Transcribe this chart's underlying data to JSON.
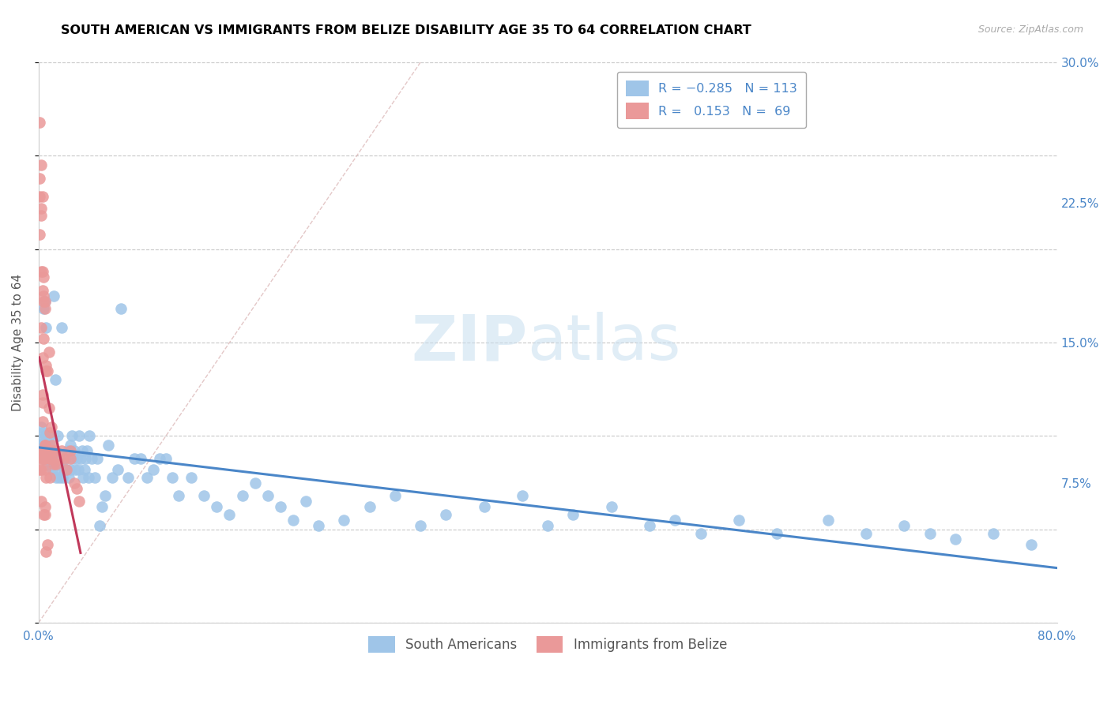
{
  "title": "SOUTH AMERICAN VS IMMIGRANTS FROM BELIZE DISABILITY AGE 35 TO 64 CORRELATION CHART",
  "source_text": "Source: ZipAtlas.com",
  "ylabel": "Disability Age 35 to 64",
  "x_min": 0.0,
  "x_max": 0.8,
  "y_min": 0.0,
  "y_max": 0.3,
  "x_ticks": [
    0.0,
    0.1,
    0.2,
    0.3,
    0.4,
    0.5,
    0.6,
    0.7,
    0.8
  ],
  "x_tick_labels": [
    "0.0%",
    "",
    "",
    "",
    "",
    "",
    "",
    "",
    "80.0%"
  ],
  "y_ticks": [
    0.0,
    0.075,
    0.15,
    0.225,
    0.3
  ],
  "y_tick_labels": [
    "",
    "7.5%",
    "15.0%",
    "22.5%",
    "30.0%"
  ],
  "legend_bottom": [
    "South Americans",
    "Immigrants from Belize"
  ],
  "blue_line_color": "#4a86c8",
  "pink_line_color": "#c0385a",
  "blue_dot_color": "#9fc5e8",
  "pink_dot_color": "#ea9999",
  "background_color": "#ffffff",
  "title_color": "#000000",
  "tick_color": "#4a86c8",
  "grid_color": "#c8c8c8",
  "title_fontsize": 11.5,
  "axis_label_fontsize": 11,
  "tick_fontsize": 11,
  "blue_scatter_x": [
    0.001,
    0.002,
    0.002,
    0.003,
    0.003,
    0.003,
    0.004,
    0.004,
    0.005,
    0.005,
    0.006,
    0.006,
    0.007,
    0.007,
    0.008,
    0.008,
    0.009,
    0.009,
    0.01,
    0.01,
    0.011,
    0.011,
    0.012,
    0.013,
    0.013,
    0.014,
    0.015,
    0.015,
    0.016,
    0.017,
    0.018,
    0.019,
    0.02,
    0.021,
    0.022,
    0.023,
    0.024,
    0.025,
    0.026,
    0.027,
    0.028,
    0.029,
    0.03,
    0.031,
    0.032,
    0.033,
    0.034,
    0.035,
    0.036,
    0.037,
    0.038,
    0.039,
    0.04,
    0.042,
    0.044,
    0.046,
    0.048,
    0.05,
    0.052,
    0.055,
    0.058,
    0.062,
    0.065,
    0.07,
    0.075,
    0.08,
    0.085,
    0.09,
    0.095,
    0.1,
    0.105,
    0.11,
    0.12,
    0.13,
    0.14,
    0.15,
    0.16,
    0.17,
    0.18,
    0.19,
    0.2,
    0.21,
    0.22,
    0.24,
    0.26,
    0.28,
    0.3,
    0.32,
    0.35,
    0.38,
    0.4,
    0.42,
    0.45,
    0.48,
    0.5,
    0.52,
    0.55,
    0.58,
    0.62,
    0.65,
    0.68,
    0.7,
    0.72,
    0.75,
    0.78,
    0.004,
    0.005,
    0.006,
    0.007,
    0.009,
    0.012,
    0.018,
    0.025
  ],
  "blue_scatter_y": [
    0.092,
    0.098,
    0.105,
    0.09,
    0.096,
    0.102,
    0.088,
    0.095,
    0.1,
    0.094,
    0.1,
    0.096,
    0.092,
    0.085,
    0.09,
    0.094,
    0.1,
    0.088,
    0.085,
    0.095,
    0.082,
    0.09,
    0.085,
    0.082,
    0.13,
    0.078,
    0.085,
    0.1,
    0.078,
    0.09,
    0.085,
    0.078,
    0.082,
    0.088,
    0.082,
    0.092,
    0.078,
    0.082,
    0.1,
    0.088,
    0.092,
    0.082,
    0.088,
    0.082,
    0.1,
    0.088,
    0.092,
    0.078,
    0.082,
    0.088,
    0.092,
    0.078,
    0.1,
    0.088,
    0.078,
    0.088,
    0.052,
    0.062,
    0.068,
    0.095,
    0.078,
    0.082,
    0.168,
    0.078,
    0.088,
    0.088,
    0.078,
    0.082,
    0.088,
    0.088,
    0.078,
    0.068,
    0.078,
    0.068,
    0.062,
    0.058,
    0.068,
    0.075,
    0.068,
    0.062,
    0.055,
    0.065,
    0.052,
    0.055,
    0.062,
    0.068,
    0.052,
    0.058,
    0.062,
    0.068,
    0.052,
    0.058,
    0.062,
    0.052,
    0.055,
    0.048,
    0.055,
    0.048,
    0.055,
    0.048,
    0.052,
    0.048,
    0.045,
    0.048,
    0.042,
    0.168,
    0.172,
    0.158,
    0.098,
    0.088,
    0.175,
    0.158,
    0.095
  ],
  "pink_scatter_x": [
    0.001,
    0.001,
    0.001,
    0.001,
    0.002,
    0.002,
    0.002,
    0.002,
    0.003,
    0.003,
    0.003,
    0.004,
    0.004,
    0.004,
    0.005,
    0.005,
    0.006,
    0.006,
    0.007,
    0.008,
    0.008,
    0.009,
    0.01,
    0.011,
    0.012,
    0.013,
    0.014,
    0.016,
    0.018,
    0.02,
    0.022,
    0.025,
    0.028,
    0.032,
    0.002,
    0.003,
    0.004,
    0.005,
    0.006,
    0.007,
    0.008,
    0.009,
    0.01,
    0.011,
    0.003,
    0.004,
    0.002,
    0.003,
    0.004,
    0.005,
    0.006,
    0.001,
    0.002,
    0.003,
    0.004,
    0.005,
    0.006,
    0.003,
    0.004,
    0.005,
    0.006,
    0.007,
    0.025,
    0.03,
    0.008,
    0.003,
    0.004,
    0.002,
    0.005
  ],
  "pink_scatter_y": [
    0.268,
    0.238,
    0.228,
    0.208,
    0.245,
    0.222,
    0.218,
    0.188,
    0.228,
    0.188,
    0.178,
    0.185,
    0.172,
    0.175,
    0.172,
    0.168,
    0.135,
    0.138,
    0.135,
    0.115,
    0.092,
    0.102,
    0.105,
    0.095,
    0.085,
    0.092,
    0.085,
    0.088,
    0.092,
    0.088,
    0.082,
    0.092,
    0.075,
    0.065,
    0.082,
    0.088,
    0.092,
    0.095,
    0.088,
    0.092,
    0.088,
    0.078,
    0.088,
    0.092,
    0.118,
    0.092,
    0.158,
    0.142,
    0.088,
    0.095,
    0.092,
    0.082,
    0.088,
    0.092,
    0.088,
    0.082,
    0.078,
    0.122,
    0.058,
    0.062,
    0.038,
    0.042,
    0.088,
    0.072,
    0.145,
    0.108,
    0.152,
    0.065,
    0.058
  ]
}
